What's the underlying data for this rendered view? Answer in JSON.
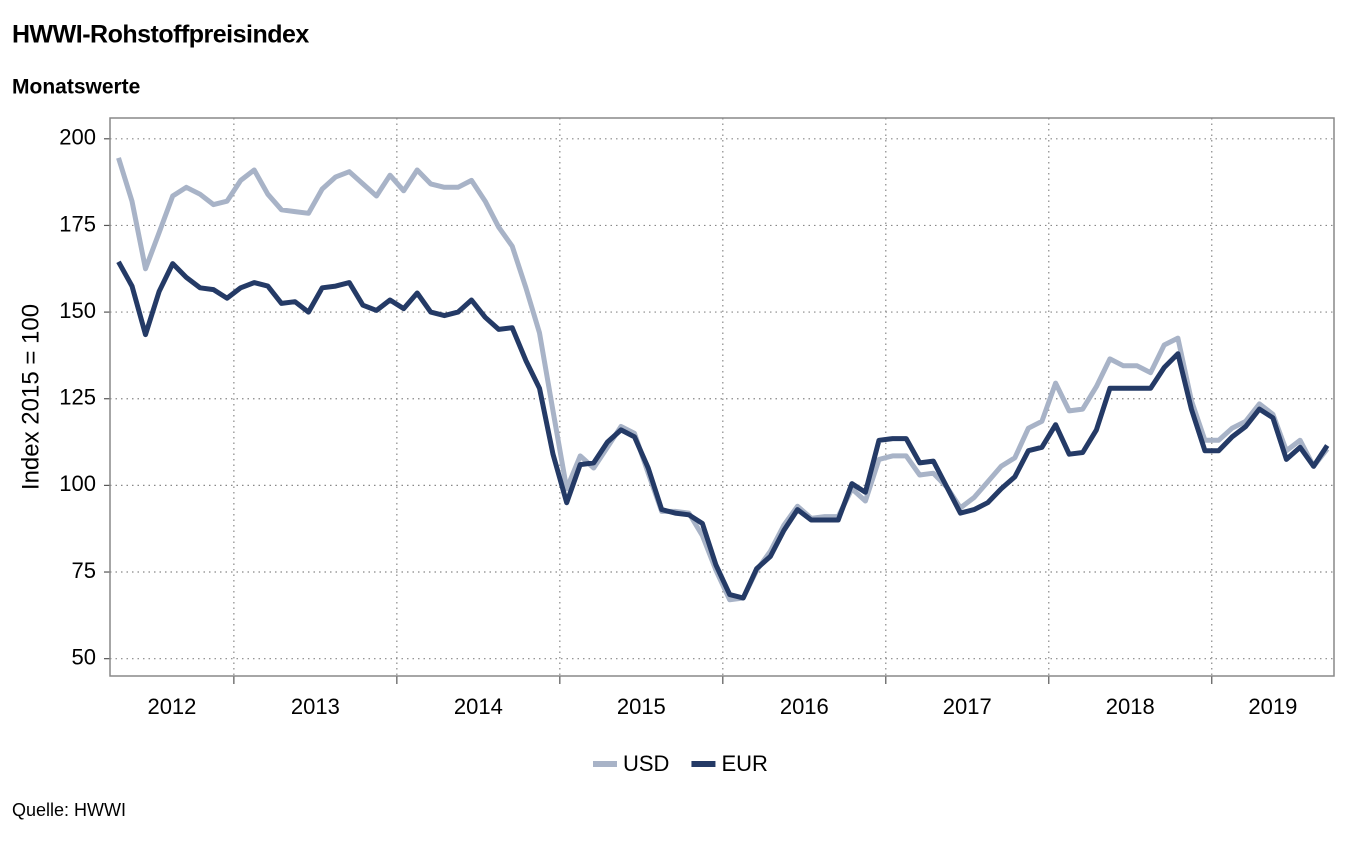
{
  "chart_data": {
    "type": "line",
    "title": "HWWI-Rohstoffpreisindex",
    "subtitle": "Monatswerte",
    "y_label": "Index 2015 = 100",
    "source": "Quelle: HWWI",
    "x": [
      2012.292,
      2012.375,
      2012.458,
      2012.542,
      2012.625,
      2012.708,
      2012.792,
      2012.875,
      2012.958,
      2013.042,
      2013.125,
      2013.208,
      2013.292,
      2013.375,
      2013.458,
      2013.542,
      2013.625,
      2013.708,
      2013.792,
      2013.875,
      2013.958,
      2014.042,
      2014.125,
      2014.208,
      2014.292,
      2014.375,
      2014.458,
      2014.542,
      2014.625,
      2014.708,
      2014.792,
      2014.875,
      2014.958,
      2015.042,
      2015.125,
      2015.208,
      2015.292,
      2015.375,
      2015.458,
      2015.542,
      2015.625,
      2015.708,
      2015.792,
      2015.875,
      2015.958,
      2016.042,
      2016.125,
      2016.208,
      2016.292,
      2016.375,
      2016.458,
      2016.542,
      2016.625,
      2016.708,
      2016.792,
      2016.875,
      2016.958,
      2017.042,
      2017.125,
      2017.208,
      2017.292,
      2017.375,
      2017.458,
      2017.542,
      2017.625,
      2017.708,
      2017.792,
      2017.875,
      2017.958,
      2018.042,
      2018.125,
      2018.208,
      2018.292,
      2018.375,
      2018.458,
      2018.542,
      2018.625,
      2018.708,
      2018.792,
      2018.875,
      2018.958,
      2019.042,
      2019.125,
      2019.208,
      2019.292,
      2019.375,
      2019.458,
      2019.542,
      2019.625,
      2019.708
    ],
    "series": [
      {
        "name": "USD",
        "color": "#a8b3c7",
        "values": [
          194.5,
          182,
          162.5,
          173,
          183.5,
          186,
          184,
          181,
          182,
          188,
          191,
          184,
          179.5,
          179,
          178.5,
          185.5,
          189,
          190.5,
          187,
          183.5,
          189.5,
          185,
          191,
          187,
          186,
          186,
          188,
          182,
          174.5,
          169,
          157,
          144,
          121.5,
          99,
          108.5,
          105,
          111,
          117,
          115,
          103.5,
          92.5,
          92.5,
          92,
          85.5,
          75.5,
          67,
          67.5,
          75.5,
          81,
          88.5,
          94,
          90.5,
          91,
          91,
          99,
          95.5,
          107.5,
          108.5,
          108.5,
          103,
          103.5,
          99.5,
          93.5,
          96.5,
          101,
          105.5,
          108,
          116.5,
          118.5,
          129.5,
          121.5,
          122,
          128.5,
          136.5,
          134.5,
          134.5,
          132.5,
          140.5,
          142.5,
          124.5,
          113,
          113,
          116.5,
          118.5,
          123.5,
          120.5,
          110,
          113,
          105.5,
          110.5
        ]
      },
      {
        "name": "EUR",
        "color": "#243a66",
        "values": [
          164.5,
          157.5,
          143.5,
          156,
          164,
          160,
          157,
          156.5,
          154,
          157,
          158.5,
          157.5,
          152.5,
          153,
          150,
          157,
          157.5,
          158.5,
          152,
          150.5,
          153.5,
          151,
          155.5,
          150,
          149,
          150,
          153.5,
          148.5,
          145,
          145.5,
          136,
          128,
          109,
          95,
          106,
          106.5,
          112.5,
          116,
          114,
          105,
          93,
          92,
          91.5,
          89,
          77,
          68.5,
          67.5,
          76,
          79.5,
          87,
          93,
          90,
          90,
          90,
          100.5,
          98,
          113,
          113.5,
          113.5,
          106.5,
          107,
          99.5,
          92,
          93,
          95,
          99,
          102.5,
          110,
          111,
          117.5,
          109,
          109.5,
          116,
          128,
          128,
          128,
          128,
          134,
          138,
          122,
          110,
          110,
          114,
          117,
          122,
          119.5,
          107.5,
          111,
          105.5,
          111.5
        ]
      }
    ],
    "xlim": [
      2012.24,
      2019.75
    ],
    "xticks": [
      2013,
      2014,
      2015,
      2016,
      2017,
      2018,
      2019
    ],
    "year_labels": [
      2012,
      2013,
      2014,
      2015,
      2016,
      2017,
      2018,
      2019
    ],
    "ylim": [
      45,
      206
    ],
    "yticks": [
      50,
      75,
      100,
      125,
      150,
      175,
      200
    ],
    "grid": true,
    "legend": "bottom"
  }
}
